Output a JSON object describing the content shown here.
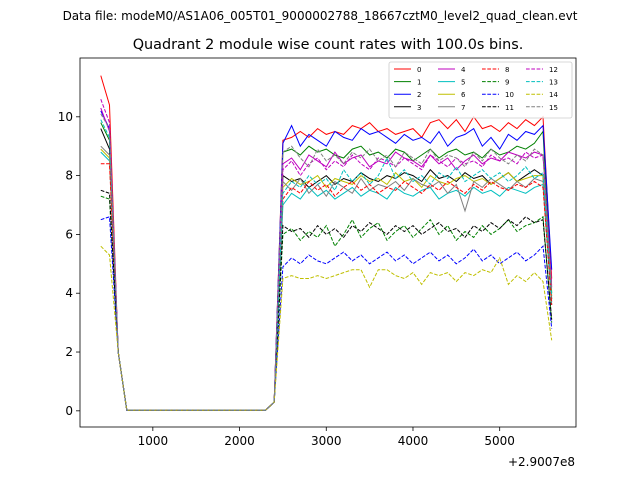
{
  "figure": {
    "suptitle": "Data file: modeM0/AS1A06_005T01_9000002788_18667cztM0_level2_quad_clean.evt"
  },
  "chart_data": {
    "type": "line",
    "title": "Quadrant 2 module wise count rates with 100.0s bins.",
    "xlabel": "",
    "ylabel": "",
    "x_offset_label": "+2.9007e8",
    "xlim": [
      160,
      5880
    ],
    "ylim": [
      -0.55,
      12.0
    ],
    "x_ticks": [
      1000,
      2000,
      3000,
      4000,
      5000
    ],
    "y_ticks": [
      0,
      2,
      4,
      6,
      8,
      10
    ],
    "grid": false,
    "legend": {
      "placement": "top-right",
      "columns": 4
    },
    "x": [
      400,
      500,
      600,
      700,
      800,
      900,
      1000,
      1100,
      1200,
      1300,
      1400,
      1500,
      1600,
      1700,
      1800,
      1900,
      2000,
      2100,
      2200,
      2300,
      2400,
      2500,
      2600,
      2700,
      2800,
      2900,
      3000,
      3100,
      3200,
      3300,
      3400,
      3500,
      3600,
      3700,
      3800,
      3900,
      4000,
      4100,
      4200,
      4300,
      4400,
      4500,
      4600,
      4700,
      4800,
      4900,
      5000,
      5100,
      5200,
      5300,
      5400,
      5500,
      5600
    ],
    "series": [
      {
        "name": "0",
        "color": "#ff0000",
        "dash": "solid",
        "values": [
          11.4,
          10.4,
          2.0,
          0.02,
          0.02,
          0.02,
          0.02,
          0.02,
          0.02,
          0.02,
          0.02,
          0.02,
          0.02,
          0.02,
          0.02,
          0.02,
          0.02,
          0.02,
          0.02,
          0.02,
          0.3,
          9.2,
          9.3,
          9.5,
          9.3,
          9.6,
          9.4,
          9.5,
          9.4,
          9.7,
          9.6,
          9.8,
          9.5,
          9.6,
          9.4,
          9.5,
          9.6,
          9.3,
          9.8,
          9.9,
          9.6,
          9.9,
          9.5,
          10.0,
          9.6,
          9.7,
          9.5,
          9.8,
          9.6,
          9.9,
          9.7,
          10.0,
          4.5
        ]
      },
      {
        "name": "1",
        "color": "#008000",
        "dash": "solid",
        "values": [
          9.8,
          9.2,
          2.0,
          0.02,
          0.02,
          0.02,
          0.02,
          0.02,
          0.02,
          0.02,
          0.02,
          0.02,
          0.02,
          0.02,
          0.02,
          0.02,
          0.02,
          0.02,
          0.02,
          0.02,
          0.3,
          8.8,
          8.9,
          8.7,
          9.0,
          8.8,
          8.9,
          8.7,
          8.6,
          8.9,
          9.0,
          8.7,
          8.8,
          8.6,
          8.9,
          8.8,
          8.5,
          8.7,
          8.9,
          8.6,
          8.8,
          8.9,
          8.7,
          8.8,
          8.6,
          8.9,
          8.7,
          8.8,
          9.0,
          8.9,
          9.1,
          9.5,
          4.0
        ]
      },
      {
        "name": "2",
        "color": "#0000ff",
        "dash": "solid",
        "values": [
          10.2,
          9.6,
          2.0,
          0.02,
          0.02,
          0.02,
          0.02,
          0.02,
          0.02,
          0.02,
          0.02,
          0.02,
          0.02,
          0.02,
          0.02,
          0.02,
          0.02,
          0.02,
          0.02,
          0.02,
          0.3,
          9.1,
          9.7,
          9.0,
          9.4,
          9.2,
          9.0,
          9.5,
          9.3,
          9.2,
          9.6,
          9.4,
          9.5,
          9.3,
          9.1,
          9.4,
          9.2,
          9.3,
          9.1,
          9.5,
          9.0,
          9.3,
          9.4,
          9.6,
          9.0,
          9.3,
          8.9,
          9.4,
          9.2,
          9.5,
          9.4,
          9.7,
          4.8
        ]
      },
      {
        "name": "3",
        "color": "#000000",
        "dash": "solid",
        "values": [
          9.6,
          8.9,
          2.0,
          0.02,
          0.02,
          0.02,
          0.02,
          0.02,
          0.02,
          0.02,
          0.02,
          0.02,
          0.02,
          0.02,
          0.02,
          0.02,
          0.02,
          0.02,
          0.02,
          0.02,
          0.3,
          8.0,
          7.8,
          7.9,
          7.6,
          7.8,
          8.0,
          7.7,
          7.9,
          7.8,
          8.1,
          7.9,
          7.8,
          8.0,
          7.9,
          8.1,
          8.0,
          7.8,
          8.2,
          7.9,
          8.0,
          7.8,
          8.1,
          7.9,
          8.0,
          7.7,
          7.9,
          8.1,
          7.8,
          8.0,
          8.2,
          8.0,
          3.8
        ]
      },
      {
        "name": "4",
        "color": "#bf00bf",
        "dash": "solid",
        "values": [
          10.3,
          9.5,
          2.0,
          0.02,
          0.02,
          0.02,
          0.02,
          0.02,
          0.02,
          0.02,
          0.02,
          0.02,
          0.02,
          0.02,
          0.02,
          0.02,
          0.02,
          0.02,
          0.02,
          0.02,
          0.3,
          8.4,
          8.6,
          8.2,
          8.7,
          8.5,
          8.3,
          8.8,
          8.4,
          8.6,
          8.7,
          8.3,
          8.5,
          8.4,
          8.8,
          8.6,
          8.5,
          8.3,
          8.7,
          8.4,
          8.6,
          8.2,
          8.5,
          8.7,
          8.4,
          8.6,
          8.5,
          8.8,
          8.7,
          8.6,
          8.8,
          8.7,
          4.2
        ]
      },
      {
        "name": "5",
        "color": "#00bfbf",
        "dash": "solid",
        "values": [
          8.8,
          8.5,
          2.0,
          0.02,
          0.02,
          0.02,
          0.02,
          0.02,
          0.02,
          0.02,
          0.02,
          0.02,
          0.02,
          0.02,
          0.02,
          0.02,
          0.02,
          0.02,
          0.02,
          0.02,
          0.3,
          7.0,
          7.4,
          7.2,
          7.6,
          7.3,
          7.5,
          7.2,
          7.4,
          7.6,
          7.3,
          7.5,
          7.4,
          7.2,
          7.6,
          7.4,
          7.3,
          7.5,
          7.6,
          7.2,
          7.4,
          7.5,
          7.3,
          7.6,
          7.4,
          7.5,
          7.3,
          7.6,
          7.5,
          7.4,
          7.6,
          7.7,
          3.6
        ]
      },
      {
        "name": "6",
        "color": "#bfbf00",
        "dash": "solid",
        "values": [
          8.9,
          8.6,
          2.0,
          0.02,
          0.02,
          0.02,
          0.02,
          0.02,
          0.02,
          0.02,
          0.02,
          0.02,
          0.02,
          0.02,
          0.02,
          0.02,
          0.02,
          0.02,
          0.02,
          0.02,
          0.3,
          7.6,
          7.9,
          7.7,
          7.8,
          8.0,
          7.6,
          7.9,
          7.8,
          7.7,
          8.0,
          7.8,
          7.9,
          7.7,
          8.1,
          7.8,
          7.9,
          7.6,
          8.0,
          7.8,
          7.7,
          7.9,
          8.0,
          7.8,
          7.9,
          7.7,
          7.9,
          8.1,
          7.8,
          7.9,
          8.0,
          8.0,
          3.9
        ]
      },
      {
        "name": "7",
        "color": "#808080",
        "dash": "solid",
        "values": [
          9.0,
          8.7,
          2.0,
          0.02,
          0.02,
          0.02,
          0.02,
          0.02,
          0.02,
          0.02,
          0.02,
          0.02,
          0.02,
          0.02,
          0.02,
          0.02,
          0.02,
          0.02,
          0.02,
          0.02,
          0.3,
          7.8,
          7.5,
          7.9,
          7.4,
          7.7,
          7.3,
          7.8,
          7.6,
          7.4,
          7.9,
          7.5,
          7.7,
          7.6,
          7.8,
          7.5,
          7.9,
          7.7,
          7.6,
          7.8,
          7.4,
          7.7,
          6.8,
          7.8,
          7.6,
          7.9,
          7.7,
          7.5,
          7.8,
          7.6,
          7.9,
          7.8,
          3.7
        ]
      },
      {
        "name": "8",
        "color": "#ff0000",
        "dash": "dashed",
        "values": [
          8.4,
          8.4,
          2.0,
          0.02,
          0.02,
          0.02,
          0.02,
          0.02,
          0.02,
          0.02,
          0.02,
          0.02,
          0.02,
          0.02,
          0.02,
          0.02,
          0.02,
          0.02,
          0.02,
          0.02,
          0.3,
          7.2,
          7.6,
          7.4,
          7.8,
          7.5,
          7.7,
          7.3,
          7.6,
          7.8,
          7.5,
          7.7,
          7.4,
          7.6,
          7.5,
          7.8,
          7.6,
          7.4,
          7.7,
          7.5,
          7.8,
          7.6,
          7.4,
          7.7,
          7.5,
          7.8,
          7.6,
          7.5,
          7.7,
          7.6,
          7.8,
          7.6,
          3.6
        ]
      },
      {
        "name": "9",
        "color": "#008000",
        "dash": "dashed",
        "values": [
          7.3,
          7.2,
          2.0,
          0.02,
          0.02,
          0.02,
          0.02,
          0.02,
          0.02,
          0.02,
          0.02,
          0.02,
          0.02,
          0.02,
          0.02,
          0.02,
          0.02,
          0.02,
          0.02,
          0.02,
          0.3,
          6.0,
          6.2,
          5.8,
          6.1,
          5.9,
          6.3,
          5.6,
          6.0,
          6.5,
          5.9,
          6.2,
          6.4,
          5.8,
          6.1,
          6.3,
          5.9,
          6.2,
          6.5,
          6.0,
          6.3,
          5.8,
          6.1,
          5.9,
          6.3,
          6.0,
          6.2,
          6.5,
          6.1,
          6.3,
          6.4,
          6.6,
          3.0
        ]
      },
      {
        "name": "10",
        "color": "#0000ff",
        "dash": "dashed",
        "values": [
          6.5,
          6.6,
          2.0,
          0.02,
          0.02,
          0.02,
          0.02,
          0.02,
          0.02,
          0.02,
          0.02,
          0.02,
          0.02,
          0.02,
          0.02,
          0.02,
          0.02,
          0.02,
          0.02,
          0.02,
          0.3,
          4.9,
          5.2,
          5.0,
          5.3,
          5.1,
          5.0,
          5.2,
          5.4,
          5.1,
          5.3,
          5.0,
          5.2,
          5.4,
          5.1,
          5.3,
          5.0,
          5.2,
          5.4,
          5.1,
          5.3,
          5.0,
          5.2,
          5.5,
          5.1,
          5.3,
          5.0,
          5.2,
          5.4,
          5.1,
          5.3,
          5.6,
          2.8
        ]
      },
      {
        "name": "11",
        "color": "#000000",
        "dash": "dashed",
        "values": [
          7.5,
          7.4,
          2.0,
          0.02,
          0.02,
          0.02,
          0.02,
          0.02,
          0.02,
          0.02,
          0.02,
          0.02,
          0.02,
          0.02,
          0.02,
          0.02,
          0.02,
          0.02,
          0.02,
          0.02,
          0.3,
          6.3,
          6.1,
          6.2,
          5.9,
          6.3,
          6.0,
          6.2,
          5.9,
          6.3,
          6.1,
          6.4,
          6.2,
          6.0,
          6.3,
          6.1,
          6.3,
          6.0,
          6.2,
          6.4,
          6.1,
          6.2,
          5.9,
          6.3,
          6.1,
          6.4,
          6.2,
          6.5,
          6.3,
          6.6,
          6.4,
          6.5,
          3.1
        ]
      },
      {
        "name": "12",
        "color": "#bf00bf",
        "dash": "dashed",
        "values": [
          10.6,
          9.8,
          2.0,
          0.02,
          0.02,
          0.02,
          0.02,
          0.02,
          0.02,
          0.02,
          0.02,
          0.02,
          0.02,
          0.02,
          0.02,
          0.02,
          0.02,
          0.02,
          0.02,
          0.02,
          0.3,
          8.2,
          8.5,
          8.0,
          8.4,
          8.6,
          8.2,
          8.5,
          8.3,
          8.7,
          8.4,
          8.2,
          8.6,
          8.5,
          8.3,
          8.6,
          8.4,
          8.2,
          8.7,
          8.5,
          8.3,
          8.6,
          8.4,
          8.5,
          8.3,
          8.7,
          8.5,
          8.6,
          8.4,
          8.8,
          8.6,
          8.7,
          4.3
        ]
      },
      {
        "name": "13",
        "color": "#00bfbf",
        "dash": "dashed",
        "values": [
          9.9,
          9.3,
          2.0,
          0.02,
          0.02,
          0.02,
          0.02,
          0.02,
          0.02,
          0.02,
          0.02,
          0.02,
          0.02,
          0.02,
          0.02,
          0.02,
          0.02,
          0.02,
          0.02,
          0.02,
          0.3,
          7.4,
          7.8,
          7.6,
          8.0,
          7.7,
          7.9,
          7.5,
          8.2,
          7.8,
          8.1,
          7.7,
          8.0,
          8.6,
          7.9,
          8.2,
          7.8,
          8.0,
          7.7,
          8.1,
          7.9,
          8.3,
          7.8,
          8.0,
          8.2,
          7.9,
          8.1,
          7.8,
          8.0,
          8.3,
          7.9,
          8.1,
          3.9
        ]
      },
      {
        "name": "14",
        "color": "#bfbf00",
        "dash": "dashed",
        "values": [
          5.6,
          5.3,
          2.0,
          0.02,
          0.02,
          0.02,
          0.02,
          0.02,
          0.02,
          0.02,
          0.02,
          0.02,
          0.02,
          0.02,
          0.02,
          0.02,
          0.02,
          0.02,
          0.02,
          0.02,
          0.3,
          4.5,
          4.6,
          4.5,
          4.5,
          4.6,
          4.5,
          4.6,
          4.7,
          4.8,
          4.8,
          4.2,
          4.8,
          4.8,
          4.6,
          4.5,
          4.7,
          4.3,
          4.7,
          4.6,
          4.7,
          4.4,
          4.7,
          4.6,
          4.8,
          4.7,
          5.2,
          4.3,
          4.6,
          4.4,
          4.7,
          4.4,
          2.4
        ]
      },
      {
        "name": "15",
        "color": "#808080",
        "dash": "dashed",
        "values": [
          10.1,
          9.6,
          2.0,
          0.02,
          0.02,
          0.02,
          0.02,
          0.02,
          0.02,
          0.02,
          0.02,
          0.02,
          0.02,
          0.02,
          0.02,
          0.02,
          0.02,
          0.02,
          0.02,
          0.02,
          0.3,
          8.8,
          9.0,
          8.6,
          8.3,
          8.9,
          8.5,
          8.7,
          8.4,
          8.8,
          8.6,
          8.9,
          8.5,
          8.7,
          8.3,
          8.8,
          8.6,
          8.4,
          8.9,
          8.5,
          8.7,
          8.6,
          8.3,
          8.8,
          8.5,
          8.9,
          8.6,
          8.4,
          8.7,
          8.5,
          8.9,
          8.7,
          4.1
        ]
      }
    ]
  }
}
